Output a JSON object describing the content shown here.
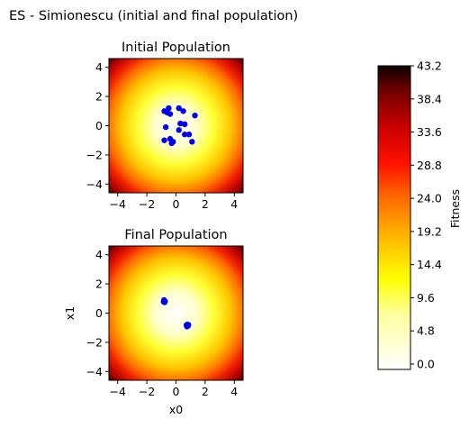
{
  "figure_title": "ES - Simionescu (initial and final population)",
  "chart_data": [
    {
      "type": "scatter",
      "title": "Initial Population",
      "xlabel": "",
      "ylabel": "",
      "xlim": [
        -4.6,
        4.6
      ],
      "ylim": [
        -4.6,
        4.6
      ],
      "xticks": [
        -4,
        -2,
        0,
        2,
        4
      ],
      "yticks": [
        -4,
        -2,
        0,
        2,
        4
      ],
      "xtick_labels": [
        "−4",
        "−2",
        "0",
        "2",
        "4"
      ],
      "ytick_labels": [
        "−4",
        "−2",
        "0",
        "2",
        "4"
      ],
      "background": "fitness heatmap (hot_r colormap)",
      "point_color": "#0000ee",
      "points": [
        [
          -0.8,
          1.0
        ],
        [
          -0.5,
          1.2
        ],
        [
          -0.6,
          0.9
        ],
        [
          -0.4,
          0.8
        ],
        [
          0.2,
          1.2
        ],
        [
          0.5,
          1.0
        ],
        [
          1.3,
          0.7
        ],
        [
          -0.7,
          -0.1
        ],
        [
          0.3,
          0.15
        ],
        [
          0.6,
          0.1
        ],
        [
          0.2,
          -0.3
        ],
        [
          0.6,
          -0.6
        ],
        [
          0.9,
          -0.6
        ],
        [
          -0.8,
          -1.0
        ],
        [
          -0.4,
          -0.9
        ],
        [
          -0.2,
          -1.1
        ],
        [
          -0.3,
          -1.2
        ],
        [
          1.1,
          -1.1
        ]
      ]
    },
    {
      "type": "scatter",
      "title": "Final Population",
      "xlabel": "x0",
      "ylabel": "x1",
      "xlim": [
        -4.6,
        4.6
      ],
      "ylim": [
        -4.6,
        4.6
      ],
      "xticks": [
        -4,
        -2,
        0,
        2,
        4
      ],
      "yticks": [
        -4,
        -2,
        0,
        2,
        4
      ],
      "xtick_labels": [
        "−4",
        "−2",
        "0",
        "2",
        "4"
      ],
      "ytick_labels": [
        "−4",
        "−2",
        "0",
        "2",
        "4"
      ],
      "background": "fitness heatmap (hot_r colormap)",
      "point_color": "#0000ee",
      "points": [
        [
          -0.85,
          0.78
        ],
        [
          -0.8,
          0.85
        ],
        [
          -0.75,
          0.8
        ],
        [
          -0.82,
          0.9
        ],
        [
          -0.78,
          0.74
        ],
        [
          0.72,
          -0.82
        ],
        [
          0.78,
          -0.78
        ],
        [
          0.82,
          -0.88
        ],
        [
          0.75,
          -0.92
        ],
        [
          0.85,
          -0.8
        ]
      ]
    },
    {
      "type": "colorbar",
      "label": "Fitness",
      "colormap": "hot_r",
      "range": [
        0.0,
        43.2
      ],
      "ticks": [
        0.0,
        4.8,
        9.6,
        14.4,
        19.2,
        24.0,
        28.8,
        33.6,
        38.4,
        43.2
      ],
      "tick_labels": [
        "0.0",
        "4.8",
        "9.6",
        "14.4",
        "19.2",
        "24.0",
        "28.8",
        "33.6",
        "38.4",
        "43.2"
      ]
    }
  ]
}
